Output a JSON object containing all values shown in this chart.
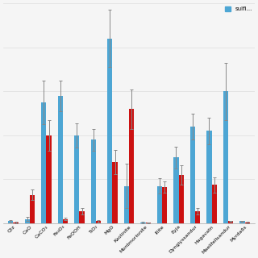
{
  "categories": [
    "Qtz",
    "CaO",
    "CaCO₃",
    "Fe₃O₄",
    "FeOOH",
    "TiO₂",
    "MgO",
    "Kaolinite",
    "Montmorionite",
    "Illite",
    "Eyja",
    "Dyngiyssandur",
    "Hagavatn",
    "Maelifellsandur",
    "Myrdaðs"
  ],
  "blue_values": [
    0.01,
    0.02,
    0.55,
    0.58,
    0.4,
    0.38,
    0.84,
    0.17,
    0.005,
    0.17,
    0.3,
    0.44,
    0.42,
    0.6,
    0.01
  ],
  "red_values": [
    0.005,
    0.13,
    0.4,
    0.02,
    0.055,
    0.01,
    0.28,
    0.52,
    0.003,
    0.165,
    0.22,
    0.055,
    0.175,
    0.01,
    0.005
  ],
  "blue_errors": [
    0.005,
    0.01,
    0.1,
    0.07,
    0.055,
    0.05,
    0.13,
    0.1,
    0.003,
    0.035,
    0.05,
    0.06,
    0.06,
    0.13,
    0.003
  ],
  "red_errors": [
    0.003,
    0.025,
    0.07,
    0.005,
    0.015,
    0.005,
    0.055,
    0.09,
    0.002,
    0.025,
    0.045,
    0.015,
    0.035,
    0.003,
    0.003
  ],
  "blue_color": "#4da6d4",
  "red_color": "#cc1111",
  "legend_label_blue": "sulfi...",
  "background_color": "#f5f5f5",
  "ylim": [
    0,
    1.0
  ],
  "bar_width": 0.3,
  "figsize": [
    3.2,
    3.2
  ],
  "dpi": 100
}
